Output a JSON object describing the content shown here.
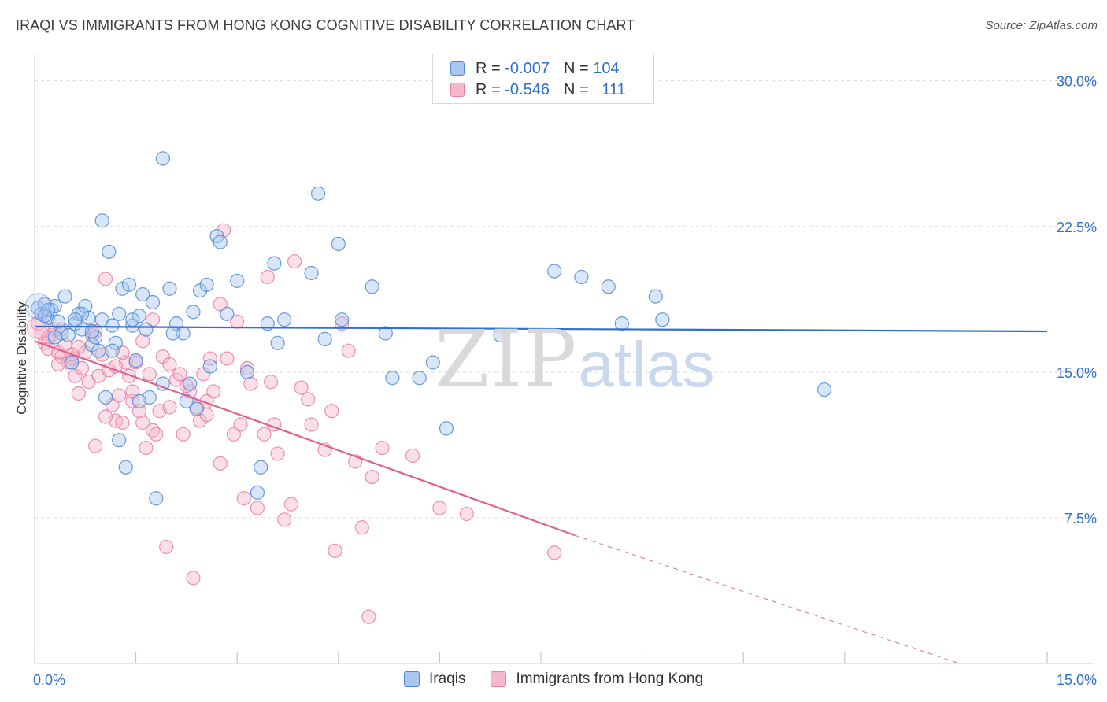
{
  "title": "IRAQI VS IMMIGRANTS FROM HONG KONG COGNITIVE DISABILITY CORRELATION CHART",
  "source": "Source: ZipAtlas.com",
  "watermark": {
    "zip": "ZIP",
    "atlas": "atlas"
  },
  "legend_top": {
    "rows": [
      {
        "r_label": "R = ",
        "r_value": "-0.007",
        "n_label": "N = ",
        "n_value": "104"
      },
      {
        "r_label": "R = ",
        "r_value": "-0.546",
        "n_label": "N = ",
        "n_value": "111"
      }
    ]
  },
  "colors": {
    "blue_fill": "#a9c7ee",
    "blue_stroke": "#4f8ad8",
    "blue_line": "#2f6fd0",
    "pink_fill": "#f5b7cb",
    "pink_stroke": "#e97fa2",
    "pink_line": "#e0608c",
    "axis_label": "#2f6fd0",
    "grid": "#dddddd"
  },
  "chart_data": {
    "type": "scatter",
    "title": "IRAQI VS IMMIGRANTS FROM HONG KONG COGNITIVE DISABILITY CORRELATION CHART",
    "xlabel": "",
    "ylabel": "Cognitive Disability",
    "xlim": [
      0,
      15
    ],
    "ylim": [
      0,
      31
    ],
    "x_tick_labels": [
      "0.0%",
      "15.0%"
    ],
    "y_ticks": [
      7.5,
      15.0,
      22.5,
      30.0
    ],
    "y_tick_labels": [
      "7.5%",
      "15.0%",
      "22.5%",
      "30.0%"
    ],
    "grid": true,
    "legend_placement": "top-center",
    "series": [
      {
        "name": "Iraqis",
        "color": "blue",
        "trend": {
          "x": [
            0.0,
            15.0
          ],
          "y": [
            17.35,
            17.1
          ],
          "dashed_from": null
        },
        "points": [
          [
            0.05,
            18.3
          ],
          [
            0.1,
            18.0
          ],
          [
            0.15,
            18.5
          ],
          [
            0.2,
            17.8
          ],
          [
            0.25,
            18.2
          ],
          [
            0.3,
            18.4
          ],
          [
            0.35,
            17.6
          ],
          [
            0.4,
            17.0
          ],
          [
            0.45,
            18.9
          ],
          [
            0.5,
            16.9
          ],
          [
            0.55,
            15.5
          ],
          [
            0.6,
            17.5
          ],
          [
            0.65,
            18.0
          ],
          [
            0.7,
            17.2
          ],
          [
            0.75,
            18.4
          ],
          [
            0.8,
            17.8
          ],
          [
            0.85,
            16.4
          ],
          [
            0.9,
            16.8
          ],
          [
            0.95,
            16.1
          ],
          [
            1.0,
            17.7
          ],
          [
            1.05,
            13.7
          ],
          [
            1.1,
            21.2
          ],
          [
            1.15,
            17.4
          ],
          [
            1.2,
            16.5
          ],
          [
            1.25,
            11.5
          ],
          [
            1.3,
            19.3
          ],
          [
            1.35,
            10.1
          ],
          [
            1.4,
            19.5
          ],
          [
            1.45,
            17.4
          ],
          [
            1.5,
            15.6
          ],
          [
            1.55,
            17.9
          ],
          [
            1.6,
            19.0
          ],
          [
            1.65,
            17.2
          ],
          [
            1.7,
            13.7
          ],
          [
            1.75,
            18.6
          ],
          [
            1.8,
            8.5
          ],
          [
            1.9,
            14.4
          ],
          [
            2.0,
            19.3
          ],
          [
            2.1,
            17.5
          ],
          [
            2.2,
            17.0
          ],
          [
            2.3,
            14.4
          ],
          [
            2.35,
            18.1
          ],
          [
            2.45,
            19.2
          ],
          [
            2.55,
            19.5
          ],
          [
            2.6,
            15.3
          ],
          [
            2.7,
            22.0
          ],
          [
            2.75,
            21.7
          ],
          [
            2.85,
            18.0
          ],
          [
            3.0,
            19.7
          ],
          [
            3.15,
            15.0
          ],
          [
            3.35,
            10.1
          ],
          [
            3.45,
            17.5
          ],
          [
            3.55,
            20.6
          ],
          [
            3.6,
            16.5
          ],
          [
            3.7,
            17.7
          ],
          [
            4.1,
            20.1
          ],
          [
            4.2,
            24.2
          ],
          [
            4.3,
            16.7
          ],
          [
            4.5,
            21.6
          ],
          [
            4.55,
            17.7
          ],
          [
            5.0,
            19.4
          ],
          [
            5.2,
            17.0
          ],
          [
            5.3,
            14.7
          ],
          [
            5.7,
            14.7
          ],
          [
            5.9,
            15.5
          ],
          [
            6.1,
            12.1
          ],
          [
            6.9,
            16.9
          ],
          [
            7.7,
            20.2
          ],
          [
            8.1,
            19.9
          ],
          [
            8.5,
            19.4
          ],
          [
            8.7,
            17.5
          ],
          [
            9.2,
            18.9
          ],
          [
            9.3,
            17.7
          ],
          [
            11.7,
            14.1
          ],
          [
            1.9,
            26.0
          ],
          [
            1.0,
            22.8
          ],
          [
            0.2,
            18.2
          ],
          [
            0.15,
            17.9
          ],
          [
            0.7,
            18.0
          ],
          [
            1.15,
            16.1
          ],
          [
            1.55,
            13.5
          ],
          [
            2.25,
            13.5
          ],
          [
            2.4,
            13.1
          ],
          [
            3.3,
            8.8
          ],
          [
            1.25,
            18.0
          ],
          [
            0.6,
            17.7
          ],
          [
            0.3,
            16.8
          ],
          [
            0.85,
            17.1
          ],
          [
            2.05,
            17.0
          ],
          [
            1.45,
            17.7
          ]
        ]
      },
      {
        "name": "Immigrants from Hong Kong",
        "color": "pink",
        "trend": {
          "x": [
            0.0,
            8.0,
            13.7
          ],
          "y": [
            16.6,
            6.6,
            0.0
          ],
          "dashed_from": 8.0
        },
        "points": [
          [
            0.05,
            17.5
          ],
          [
            0.1,
            17.0
          ],
          [
            0.15,
            16.5
          ],
          [
            0.2,
            16.2
          ],
          [
            0.25,
            16.9
          ],
          [
            0.3,
            17.2
          ],
          [
            0.35,
            16.0
          ],
          [
            0.4,
            15.8
          ],
          [
            0.45,
            16.4
          ],
          [
            0.5,
            15.5
          ],
          [
            0.55,
            15.7
          ],
          [
            0.6,
            14.8
          ],
          [
            0.65,
            13.9
          ],
          [
            0.7,
            15.2
          ],
          [
            0.75,
            16.0
          ],
          [
            0.8,
            14.5
          ],
          [
            0.85,
            16.9
          ],
          [
            0.9,
            11.2
          ],
          [
            0.95,
            14.8
          ],
          [
            1.0,
            15.9
          ],
          [
            1.05,
            19.8
          ],
          [
            1.1,
            15.1
          ],
          [
            1.15,
            13.3
          ],
          [
            1.2,
            12.5
          ],
          [
            1.25,
            13.8
          ],
          [
            1.3,
            12.4
          ],
          [
            1.35,
            15.5
          ],
          [
            1.4,
            14.8
          ],
          [
            1.45,
            13.5
          ],
          [
            1.5,
            15.5
          ],
          [
            1.55,
            13.0
          ],
          [
            1.6,
            12.4
          ],
          [
            1.65,
            11.1
          ],
          [
            1.7,
            14.9
          ],
          [
            1.75,
            12.0
          ],
          [
            1.8,
            11.8
          ],
          [
            1.85,
            13.0
          ],
          [
            1.9,
            15.8
          ],
          [
            1.95,
            6.0
          ],
          [
            2.0,
            13.2
          ],
          [
            2.1,
            14.6
          ],
          [
            2.15,
            14.9
          ],
          [
            2.2,
            11.8
          ],
          [
            2.3,
            14.0
          ],
          [
            2.35,
            4.4
          ],
          [
            2.4,
            13.2
          ],
          [
            2.45,
            12.5
          ],
          [
            2.5,
            14.9
          ],
          [
            2.55,
            12.8
          ],
          [
            2.6,
            15.7
          ],
          [
            2.65,
            14.0
          ],
          [
            2.75,
            10.3
          ],
          [
            2.8,
            22.3
          ],
          [
            2.85,
            15.7
          ],
          [
            2.95,
            11.8
          ],
          [
            3.05,
            12.3
          ],
          [
            3.1,
            8.5
          ],
          [
            3.15,
            15.2
          ],
          [
            3.2,
            14.4
          ],
          [
            3.3,
            8.0
          ],
          [
            3.4,
            11.8
          ],
          [
            3.45,
            19.9
          ],
          [
            3.5,
            14.5
          ],
          [
            3.55,
            12.3
          ],
          [
            3.6,
            10.8
          ],
          [
            3.7,
            7.4
          ],
          [
            3.8,
            8.2
          ],
          [
            3.85,
            20.7
          ],
          [
            3.95,
            14.2
          ],
          [
            4.05,
            13.6
          ],
          [
            4.1,
            12.3
          ],
          [
            4.3,
            11.0
          ],
          [
            4.4,
            13.0
          ],
          [
            4.45,
            5.8
          ],
          [
            4.55,
            17.5
          ],
          [
            4.65,
            16.1
          ],
          [
            4.75,
            10.4
          ],
          [
            4.85,
            7.0
          ],
          [
            4.95,
            2.4
          ],
          [
            5.0,
            9.6
          ],
          [
            5.15,
            11.1
          ],
          [
            5.6,
            10.7
          ],
          [
            6.0,
            8.0
          ],
          [
            6.4,
            7.7
          ],
          [
            7.7,
            5.7
          ],
          [
            0.2,
            16.8
          ],
          [
            0.4,
            17.2
          ],
          [
            0.65,
            16.3
          ],
          [
            0.9,
            17.1
          ],
          [
            1.2,
            15.3
          ],
          [
            1.45,
            14.0
          ],
          [
            1.75,
            17.7
          ],
          [
            2.0,
            15.4
          ],
          [
            2.55,
            13.5
          ],
          [
            2.75,
            18.5
          ],
          [
            1.6,
            16.6
          ],
          [
            0.35,
            15.4
          ],
          [
            3.0,
            17.6
          ],
          [
            1.05,
            12.7
          ],
          [
            2.25,
            14.3
          ],
          [
            0.55,
            15.9
          ],
          [
            1.3,
            16.0
          ]
        ]
      }
    ]
  },
  "legend_bottom": {
    "items": [
      "Iraqis",
      "Immigrants from Hong Kong"
    ]
  }
}
